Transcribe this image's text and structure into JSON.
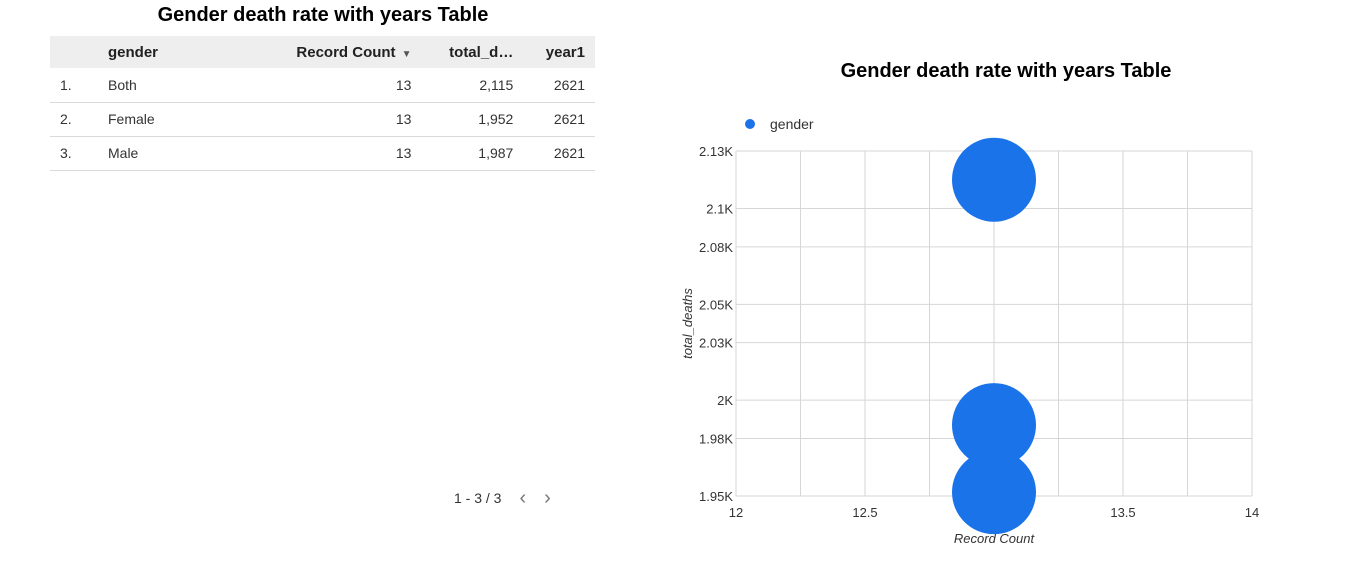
{
  "table": {
    "title": "Gender death rate with years Table",
    "headers": {
      "gender": "gender",
      "record_count": "Record Count",
      "total_deaths": "total_d…",
      "year": "year1"
    },
    "rows": [
      {
        "index": "1.",
        "gender": "Both",
        "record_count": "13",
        "total_deaths": "2,115",
        "year": "2621"
      },
      {
        "index": "2.",
        "gender": "Female",
        "record_count": "13",
        "total_deaths": "1,952",
        "year": "2621"
      },
      {
        "index": "3.",
        "gender": "Male",
        "record_count": "13",
        "total_deaths": "1,987",
        "year": "2621"
      }
    ],
    "pagination": {
      "label": "1 - 3 / 3",
      "prev": "‹",
      "next": "›"
    }
  },
  "chart_data": {
    "type": "scatter",
    "title": "Gender death rate with years Table",
    "xlabel": "Record Count",
    "ylabel": "total_deaths",
    "xlim": [
      12,
      14
    ],
    "ylim": [
      1950,
      2130
    ],
    "x_ticks": [
      12,
      12.5,
      13,
      13.5,
      14
    ],
    "x_tick_labels": [
      "12",
      "12.5",
      "13",
      "13.5",
      "14"
    ],
    "y_ticks": [
      1950,
      1980,
      2000,
      2030,
      2050,
      2080,
      2100,
      2130
    ],
    "y_tick_labels": [
      "1.95K",
      "1.98K",
      "2K",
      "2.03K",
      "2.05K",
      "2.08K",
      "2.1K",
      "2.13K"
    ],
    "grid": true,
    "legend": {
      "placement": "top-left",
      "entries": [
        "gender"
      ]
    },
    "series": [
      {
        "name": "gender",
        "color": "#1a73e8",
        "points": [
          {
            "x": 13,
            "y": 2115
          },
          {
            "x": 13,
            "y": 1987
          },
          {
            "x": 13,
            "y": 1952
          }
        ]
      }
    ]
  }
}
